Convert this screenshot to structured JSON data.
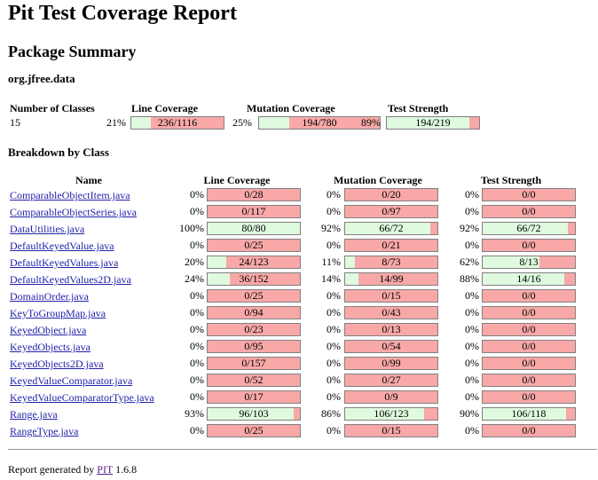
{
  "title": "Pit Test Coverage Report",
  "package_summary_heading": "Package Summary",
  "package_name": "org.jfree.data",
  "summary": {
    "headers": {
      "classes": "Number of Classes",
      "line": "Line Coverage",
      "mutation": "Mutation Coverage",
      "strength": "Test Strength"
    },
    "classes": "15",
    "line": {
      "pct": "21%",
      "label": "236/1116",
      "frac": 0.21
    },
    "mutation": {
      "pct": "25%",
      "label": "194/780",
      "frac": 0.25
    },
    "strength": {
      "pct": "89%",
      "label": "194/219",
      "frac": 0.89
    }
  },
  "breakdown_heading": "Breakdown by Class",
  "columns": {
    "name": "Name",
    "line": "Line Coverage",
    "mutation": "Mutation Coverage",
    "strength": "Test Strength"
  },
  "rows": [
    {
      "name": "ComparableObjectItem.java",
      "line": [
        "0%",
        "0/28",
        0
      ],
      "mut": [
        "0%",
        "0/20",
        0
      ],
      "str": [
        "0%",
        "0/0",
        0
      ]
    },
    {
      "name": "ComparableObjectSeries.java",
      "line": [
        "0%",
        "0/117",
        0
      ],
      "mut": [
        "0%",
        "0/97",
        0
      ],
      "str": [
        "0%",
        "0/0",
        0
      ]
    },
    {
      "name": "DataUtilities.java",
      "line": [
        "100%",
        "80/80",
        1.0
      ],
      "mut": [
        "92%",
        "66/72",
        0.92
      ],
      "str": [
        "92%",
        "66/72",
        0.92
      ]
    },
    {
      "name": "DefaultKeyedValue.java",
      "line": [
        "0%",
        "0/25",
        0
      ],
      "mut": [
        "0%",
        "0/21",
        0
      ],
      "str": [
        "0%",
        "0/0",
        0
      ]
    },
    {
      "name": "DefaultKeyedValues.java",
      "line": [
        "20%",
        "24/123",
        0.2
      ],
      "mut": [
        "11%",
        "8/73",
        0.11
      ],
      "str": [
        "62%",
        "8/13",
        0.62
      ]
    },
    {
      "name": "DefaultKeyedValues2D.java",
      "line": [
        "24%",
        "36/152",
        0.24
      ],
      "mut": [
        "14%",
        "14/99",
        0.14
      ],
      "str": [
        "88%",
        "14/16",
        0.88
      ]
    },
    {
      "name": "DomainOrder.java",
      "line": [
        "0%",
        "0/25",
        0
      ],
      "mut": [
        "0%",
        "0/15",
        0
      ],
      "str": [
        "0%",
        "0/0",
        0
      ]
    },
    {
      "name": "KeyToGroupMap.java",
      "line": [
        "0%",
        "0/94",
        0
      ],
      "mut": [
        "0%",
        "0/43",
        0
      ],
      "str": [
        "0%",
        "0/0",
        0
      ]
    },
    {
      "name": "KeyedObject.java",
      "line": [
        "0%",
        "0/23",
        0
      ],
      "mut": [
        "0%",
        "0/13",
        0
      ],
      "str": [
        "0%",
        "0/0",
        0
      ]
    },
    {
      "name": "KeyedObjects.java",
      "line": [
        "0%",
        "0/95",
        0
      ],
      "mut": [
        "0%",
        "0/54",
        0
      ],
      "str": [
        "0%",
        "0/0",
        0
      ]
    },
    {
      "name": "KeyedObjects2D.java",
      "line": [
        "0%",
        "0/157",
        0
      ],
      "mut": [
        "0%",
        "0/99",
        0
      ],
      "str": [
        "0%",
        "0/0",
        0
      ]
    },
    {
      "name": "KeyedValueComparator.java",
      "line": [
        "0%",
        "0/52",
        0
      ],
      "mut": [
        "0%",
        "0/27",
        0
      ],
      "str": [
        "0%",
        "0/0",
        0
      ]
    },
    {
      "name": "KeyedValueComparatorType.java",
      "line": [
        "0%",
        "0/17",
        0
      ],
      "mut": [
        "0%",
        "0/9",
        0
      ],
      "str": [
        "0%",
        "0/0",
        0
      ]
    },
    {
      "name": "Range.java",
      "line": [
        "93%",
        "96/103",
        0.93
      ],
      "mut": [
        "86%",
        "106/123",
        0.86
      ],
      "str": [
        "90%",
        "106/118",
        0.9
      ]
    },
    {
      "name": "RangeType.java",
      "line": [
        "0%",
        "0/25",
        0
      ],
      "mut": [
        "0%",
        "0/15",
        0
      ],
      "str": [
        "0%",
        "0/0",
        0
      ]
    }
  ],
  "footer": {
    "prefix": "Report generated by",
    "link": "PIT",
    "version": "1.6.8"
  },
  "colors": {
    "covered": "#dffadf",
    "uncovered": "#f9a8a8",
    "link": "#2222aa"
  }
}
